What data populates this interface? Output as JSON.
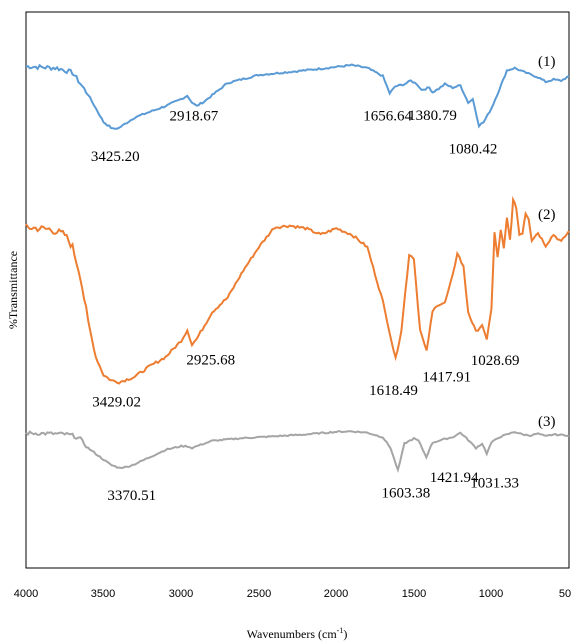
{
  "chart_data": {
    "type": "line",
    "title": "",
    "xlabel": "Wavenumbers (cm",
    "xlabel_sup": "-1",
    "xlabel_close": ")",
    "ylabel": "%Transmittance",
    "xlim": [
      4000,
      500
    ],
    "x_reversed": true,
    "xticks": [
      "4000",
      "3500",
      "3000",
      "2500",
      "2000",
      "1500",
      "1000",
      "50"
    ],
    "grid": false,
    "legend": "none",
    "series": [
      {
        "name": "(1)",
        "color": "#5B9BD5",
        "points": [
          [
            4000,
            0.945
          ],
          [
            3800,
            0.93
          ],
          [
            3700,
            0.89
          ],
          [
            3600,
            0.7
          ],
          [
            3500,
            0.46
          ],
          [
            3440,
            0.4
          ],
          [
            3400,
            0.41
          ],
          [
            3300,
            0.5
          ],
          [
            3200,
            0.55
          ],
          [
            3100,
            0.6
          ],
          [
            3000,
            0.66
          ],
          [
            2960,
            0.69
          ],
          [
            2930,
            0.63
          ],
          [
            2900,
            0.6
          ],
          [
            2850,
            0.64
          ],
          [
            2700,
            0.8
          ],
          [
            2500,
            0.87
          ],
          [
            2200,
            0.91
          ],
          [
            2000,
            0.94
          ],
          [
            1900,
            0.955
          ],
          [
            1800,
            0.93
          ],
          [
            1700,
            0.86
          ],
          [
            1656,
            0.71
          ],
          [
            1620,
            0.77
          ],
          [
            1560,
            0.79
          ],
          [
            1520,
            0.82
          ],
          [
            1480,
            0.79
          ],
          [
            1450,
            0.74
          ],
          [
            1400,
            0.76
          ],
          [
            1380,
            0.72
          ],
          [
            1340,
            0.75
          ],
          [
            1300,
            0.79
          ],
          [
            1250,
            0.76
          ],
          [
            1200,
            0.78
          ],
          [
            1150,
            0.63
          ],
          [
            1120,
            0.66
          ],
          [
            1080,
            0.43
          ],
          [
            1050,
            0.46
          ],
          [
            1000,
            0.58
          ],
          [
            950,
            0.74
          ],
          [
            900,
            0.91
          ],
          [
            850,
            0.93
          ],
          [
            800,
            0.9
          ],
          [
            700,
            0.85
          ],
          [
            650,
            0.81
          ],
          [
            600,
            0.83
          ],
          [
            550,
            0.82
          ],
          [
            500,
            0.86
          ]
        ],
        "peaks": [
          {
            "x": 3425,
            "label": "3425.20"
          },
          {
            "x": 2918,
            "label": "2918.67"
          },
          {
            "x": 1656,
            "label": "1656.64"
          },
          {
            "x": 1380,
            "label": "1380.79"
          },
          {
            "x": 1080,
            "label": "1080.42"
          }
        ]
      },
      {
        "name": "(2)",
        "color": "#ED7D31",
        "points": [
          [
            4000,
            0.97
          ],
          [
            3850,
            0.96
          ],
          [
            3750,
            0.93
          ],
          [
            3700,
            0.86
          ],
          [
            3650,
            0.7
          ],
          [
            3600,
            0.45
          ],
          [
            3550,
            0.25
          ],
          [
            3500,
            0.15
          ],
          [
            3450,
            0.12
          ],
          [
            3400,
            0.11
          ],
          [
            3300,
            0.14
          ],
          [
            3200,
            0.2
          ],
          [
            3100,
            0.25
          ],
          [
            3000,
            0.34
          ],
          [
            2960,
            0.4
          ],
          [
            2930,
            0.32
          ],
          [
            2900,
            0.35
          ],
          [
            2800,
            0.5
          ],
          [
            2700,
            0.58
          ],
          [
            2600,
            0.73
          ],
          [
            2500,
            0.86
          ],
          [
            2400,
            0.97
          ],
          [
            2300,
            0.98
          ],
          [
            2200,
            0.965
          ],
          [
            2100,
            0.93
          ],
          [
            2000,
            0.965
          ],
          [
            1900,
            0.93
          ],
          [
            1800,
            0.86
          ],
          [
            1700,
            0.56
          ],
          [
            1618,
            0.24
          ],
          [
            1580,
            0.4
          ],
          [
            1530,
            0.82
          ],
          [
            1500,
            0.8
          ],
          [
            1460,
            0.4
          ],
          [
            1418,
            0.28
          ],
          [
            1380,
            0.5
          ],
          [
            1350,
            0.54
          ],
          [
            1300,
            0.55
          ],
          [
            1250,
            0.7
          ],
          [
            1220,
            0.83
          ],
          [
            1180,
            0.75
          ],
          [
            1150,
            0.5
          ],
          [
            1100,
            0.39
          ],
          [
            1060,
            0.43
          ],
          [
            1030,
            0.34
          ],
          [
            1000,
            0.52
          ],
          [
            980,
            0.94
          ],
          [
            960,
            0.8
          ],
          [
            940,
            0.96
          ],
          [
            920,
            0.85
          ],
          [
            900,
            1.02
          ],
          [
            880,
            0.9
          ],
          [
            860,
            1.12
          ],
          [
            840,
            1.08
          ],
          [
            820,
            0.93
          ],
          [
            800,
            0.94
          ],
          [
            780,
            1.05
          ],
          [
            760,
            1.02
          ],
          [
            740,
            0.9
          ],
          [
            700,
            0.94
          ],
          [
            650,
            0.87
          ],
          [
            600,
            0.93
          ],
          [
            550,
            0.89
          ],
          [
            500,
            0.95
          ]
        ],
        "peaks": [
          {
            "x": 3429,
            "label": "3429.02"
          },
          {
            "x": 2925,
            "label": "2925.68"
          },
          {
            "x": 1618,
            "label": "1618.49"
          },
          {
            "x": 1417,
            "label": "1417.91"
          },
          {
            "x": 1028,
            "label": "1028.69"
          }
        ]
      },
      {
        "name": "(3)",
        "color": "#A5A5A5",
        "points": [
          [
            4000,
            0.965
          ],
          [
            3850,
            0.96
          ],
          [
            3750,
            0.955
          ],
          [
            3700,
            0.94
          ],
          [
            3650,
            0.9
          ],
          [
            3600,
            0.8
          ],
          [
            3500,
            0.67
          ],
          [
            3450,
            0.61
          ],
          [
            3400,
            0.58
          ],
          [
            3350,
            0.59
          ],
          [
            3300,
            0.62
          ],
          [
            3200,
            0.7
          ],
          [
            3100,
            0.78
          ],
          [
            3000,
            0.82
          ],
          [
            2960,
            0.82
          ],
          [
            2930,
            0.8
          ],
          [
            2900,
            0.82
          ],
          [
            2800,
            0.88
          ],
          [
            2600,
            0.91
          ],
          [
            2400,
            0.93
          ],
          [
            2200,
            0.95
          ],
          [
            2000,
            0.98
          ],
          [
            1900,
            0.985
          ],
          [
            1800,
            0.97
          ],
          [
            1700,
            0.92
          ],
          [
            1650,
            0.8
          ],
          [
            1603,
            0.55
          ],
          [
            1560,
            0.85
          ],
          [
            1500,
            0.905
          ],
          [
            1470,
            0.88
          ],
          [
            1420,
            0.7
          ],
          [
            1380,
            0.86
          ],
          [
            1300,
            0.9
          ],
          [
            1250,
            0.92
          ],
          [
            1200,
            0.97
          ],
          [
            1150,
            0.89
          ],
          [
            1100,
            0.8
          ],
          [
            1060,
            0.85
          ],
          [
            1030,
            0.74
          ],
          [
            1000,
            0.86
          ],
          [
            950,
            0.92
          ],
          [
            900,
            0.95
          ],
          [
            850,
            0.98
          ],
          [
            800,
            0.95
          ],
          [
            750,
            0.94
          ],
          [
            700,
            0.96
          ],
          [
            650,
            0.93
          ],
          [
            600,
            0.95
          ],
          [
            500,
            0.94
          ]
        ],
        "peaks": [
          {
            "x": 3370,
            "label": "3370.51"
          },
          {
            "x": 1603,
            "label": "1603.38"
          },
          {
            "x": 1421,
            "label": "1421.94"
          },
          {
            "x": 1031,
            "label": "1031.33"
          }
        ]
      }
    ]
  }
}
